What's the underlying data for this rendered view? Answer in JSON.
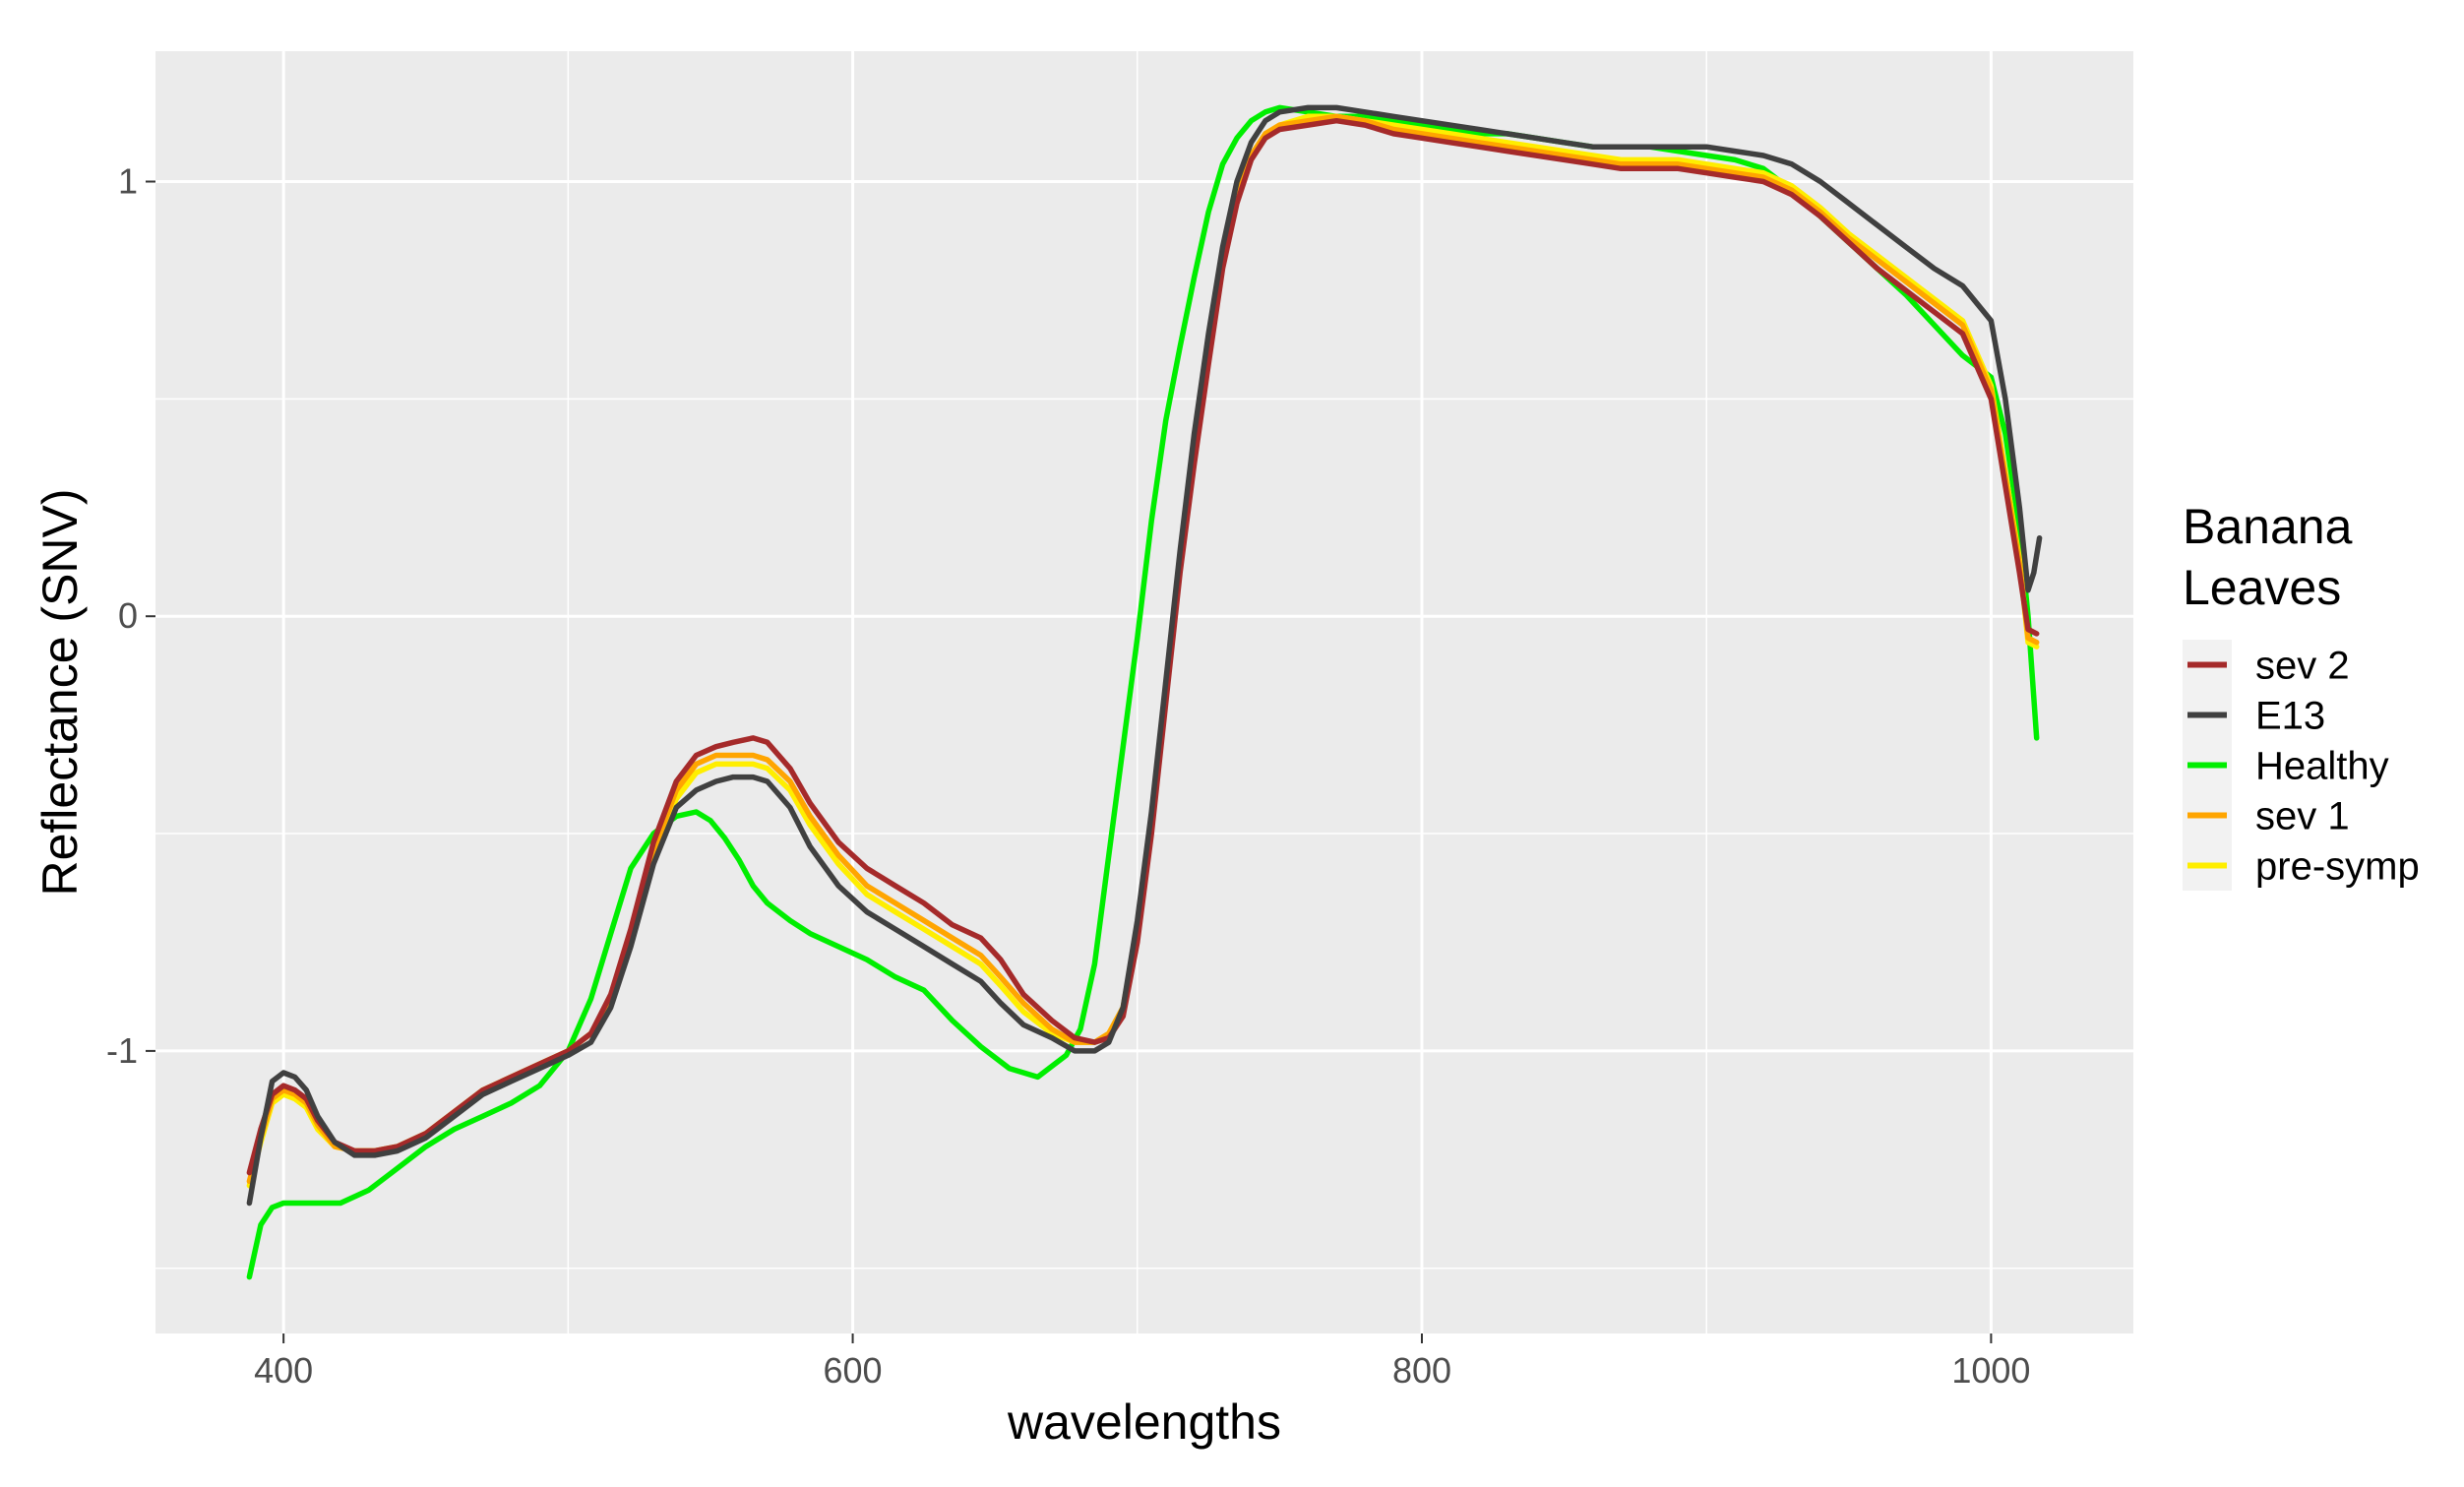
{
  "chart_data": {
    "type": "line",
    "title": "",
    "xlabel": "wavelengths",
    "ylabel": "Reflectance (SNV)",
    "xlim": [
      355,
      1050
    ],
    "ylim": [
      -1.65,
      1.3
    ],
    "x_ticks": [
      400,
      600,
      800,
      1000
    ],
    "x_tick_labels": [
      "400",
      "600",
      "800",
      "1000"
    ],
    "y_ticks": [
      -1,
      0,
      1
    ],
    "y_tick_labels": [
      "-1",
      "0",
      "1"
    ],
    "grid": true,
    "legend": {
      "title_lines": [
        "Banana",
        "Leaves"
      ],
      "placement": "right"
    },
    "series": [
      {
        "name": "sev 2",
        "color": "#a52a2a",
        "x": [
          388,
          392,
          396,
          400,
          404,
          408,
          412,
          418,
          425,
          432,
          440,
          450,
          460,
          470,
          480,
          490,
          500,
          508,
          515,
          522,
          530,
          538,
          545,
          552,
          558,
          565,
          570,
          578,
          585,
          595,
          605,
          615,
          625,
          635,
          645,
          652,
          660,
          670,
          678,
          685,
          690,
          695,
          700,
          705,
          710,
          715,
          720,
          725,
          730,
          735,
          740,
          745,
          750,
          760,
          770,
          780,
          790,
          800,
          810,
          820,
          830,
          840,
          850,
          860,
          870,
          880,
          890,
          900,
          910,
          920,
          930,
          940,
          950,
          960,
          970,
          980,
          990,
          1000,
          1005,
          1010,
          1013,
          1016
        ],
        "y": [
          -1.28,
          -1.18,
          -1.1,
          -1.08,
          -1.09,
          -1.11,
          -1.16,
          -1.21,
          -1.23,
          -1.23,
          -1.22,
          -1.19,
          -1.14,
          -1.09,
          -1.06,
          -1.03,
          -1.0,
          -0.96,
          -0.87,
          -0.72,
          -0.52,
          -0.38,
          -0.32,
          -0.3,
          -0.29,
          -0.28,
          -0.29,
          -0.35,
          -0.43,
          -0.52,
          -0.58,
          -0.62,
          -0.66,
          -0.71,
          -0.74,
          -0.79,
          -0.87,
          -0.93,
          -0.97,
          -0.98,
          -0.97,
          -0.92,
          -0.75,
          -0.5,
          -0.2,
          0.1,
          0.35,
          0.58,
          0.8,
          0.95,
          1.05,
          1.1,
          1.12,
          1.13,
          1.14,
          1.13,
          1.11,
          1.1,
          1.09,
          1.08,
          1.07,
          1.06,
          1.05,
          1.04,
          1.03,
          1.03,
          1.03,
          1.02,
          1.01,
          1.0,
          0.97,
          0.92,
          0.86,
          0.8,
          0.75,
          0.7,
          0.65,
          0.5,
          0.3,
          0.1,
          -0.03,
          -0.04
        ]
      },
      {
        "name": "E13",
        "color": "#404040",
        "x": [
          388,
          392,
          396,
          400,
          404,
          408,
          412,
          418,
          425,
          432,
          440,
          450,
          460,
          470,
          480,
          490,
          500,
          508,
          515,
          522,
          530,
          538,
          545,
          552,
          558,
          565,
          570,
          578,
          585,
          595,
          605,
          615,
          625,
          635,
          645,
          652,
          660,
          670,
          678,
          685,
          690,
          695,
          700,
          705,
          710,
          715,
          720,
          725,
          730,
          735,
          740,
          745,
          750,
          760,
          770,
          780,
          790,
          800,
          810,
          820,
          830,
          840,
          850,
          860,
          870,
          880,
          890,
          900,
          910,
          920,
          930,
          940,
          950,
          960,
          970,
          980,
          990,
          1000,
          1005,
          1010,
          1013,
          1015,
          1017
        ],
        "y": [
          -1.35,
          -1.2,
          -1.07,
          -1.05,
          -1.06,
          -1.09,
          -1.15,
          -1.21,
          -1.24,
          -1.24,
          -1.23,
          -1.2,
          -1.15,
          -1.1,
          -1.07,
          -1.04,
          -1.01,
          -0.98,
          -0.9,
          -0.76,
          -0.57,
          -0.44,
          -0.4,
          -0.38,
          -0.37,
          -0.37,
          -0.38,
          -0.44,
          -0.53,
          -0.62,
          -0.68,
          -0.72,
          -0.76,
          -0.8,
          -0.84,
          -0.89,
          -0.94,
          -0.97,
          -1.0,
          -1.0,
          -0.98,
          -0.9,
          -0.7,
          -0.45,
          -0.15,
          0.15,
          0.42,
          0.65,
          0.85,
          1.0,
          1.09,
          1.14,
          1.16,
          1.17,
          1.17,
          1.16,
          1.15,
          1.14,
          1.13,
          1.12,
          1.11,
          1.1,
          1.09,
          1.08,
          1.08,
          1.08,
          1.08,
          1.08,
          1.07,
          1.06,
          1.04,
          1.0,
          0.95,
          0.9,
          0.85,
          0.8,
          0.76,
          0.68,
          0.5,
          0.25,
          0.06,
          0.1,
          0.18
        ]
      },
      {
        "name": "Healthy",
        "color": "#00ee00",
        "x": [
          388,
          392,
          396,
          400,
          410,
          420,
          430,
          440,
          450,
          460,
          470,
          480,
          490,
          500,
          508,
          515,
          522,
          530,
          538,
          545,
          550,
          555,
          560,
          565,
          570,
          578,
          585,
          595,
          605,
          615,
          625,
          635,
          645,
          655,
          665,
          675,
          680,
          685,
          690,
          695,
          700,
          705,
          710,
          715,
          720,
          725,
          730,
          735,
          740,
          745,
          750,
          760,
          770,
          780,
          790,
          800,
          810,
          820,
          830,
          840,
          850,
          860,
          870,
          880,
          890,
          900,
          910,
          920,
          930,
          940,
          950,
          960,
          970,
          980,
          990,
          1000,
          1005,
          1010,
          1013,
          1016
        ],
        "y": [
          -1.52,
          -1.4,
          -1.36,
          -1.35,
          -1.35,
          -1.35,
          -1.32,
          -1.27,
          -1.22,
          -1.18,
          -1.15,
          -1.12,
          -1.08,
          -1.0,
          -0.88,
          -0.73,
          -0.58,
          -0.5,
          -0.46,
          -0.45,
          -0.47,
          -0.51,
          -0.56,
          -0.62,
          -0.66,
          -0.7,
          -0.73,
          -0.76,
          -0.79,
          -0.83,
          -0.86,
          -0.93,
          -0.99,
          -1.04,
          -1.06,
          -1.01,
          -0.95,
          -0.8,
          -0.55,
          -0.3,
          -0.05,
          0.22,
          0.45,
          0.62,
          0.78,
          0.93,
          1.04,
          1.1,
          1.14,
          1.16,
          1.17,
          1.16,
          1.15,
          1.15,
          1.14,
          1.13,
          1.12,
          1.11,
          1.11,
          1.1,
          1.09,
          1.08,
          1.08,
          1.08,
          1.07,
          1.06,
          1.05,
          1.03,
          0.98,
          0.92,
          0.86,
          0.8,
          0.74,
          0.67,
          0.6,
          0.55,
          0.42,
          0.2,
          0.0,
          -0.28
        ]
      },
      {
        "name": "sev 1",
        "color": "#ffa500",
        "x": [
          388,
          392,
          396,
          400,
          404,
          408,
          412,
          418,
          425,
          432,
          440,
          450,
          460,
          470,
          480,
          490,
          500,
          508,
          515,
          522,
          530,
          538,
          545,
          552,
          558,
          565,
          570,
          578,
          585,
          595,
          605,
          615,
          625,
          635,
          645,
          652,
          660,
          670,
          678,
          685,
          690,
          695,
          700,
          705,
          710,
          715,
          720,
          725,
          730,
          735,
          740,
          745,
          750,
          760,
          770,
          780,
          790,
          800,
          810,
          820,
          830,
          840,
          850,
          860,
          870,
          880,
          890,
          900,
          910,
          920,
          930,
          940,
          950,
          960,
          970,
          980,
          990,
          1000,
          1005,
          1010,
          1013,
          1016
        ],
        "y": [
          -1.3,
          -1.2,
          -1.11,
          -1.09,
          -1.1,
          -1.12,
          -1.17,
          -1.22,
          -1.23,
          -1.23,
          -1.22,
          -1.19,
          -1.14,
          -1.09,
          -1.06,
          -1.03,
          -1.0,
          -0.96,
          -0.88,
          -0.73,
          -0.54,
          -0.4,
          -0.34,
          -0.32,
          -0.32,
          -0.32,
          -0.33,
          -0.38,
          -0.46,
          -0.55,
          -0.62,
          -0.66,
          -0.7,
          -0.74,
          -0.78,
          -0.83,
          -0.89,
          -0.95,
          -0.98,
          -0.98,
          -0.96,
          -0.9,
          -0.72,
          -0.47,
          -0.18,
          0.12,
          0.38,
          0.6,
          0.82,
          0.97,
          1.06,
          1.11,
          1.13,
          1.14,
          1.15,
          1.14,
          1.12,
          1.11,
          1.1,
          1.09,
          1.08,
          1.07,
          1.06,
          1.05,
          1.04,
          1.04,
          1.04,
          1.03,
          1.02,
          1.01,
          0.98,
          0.93,
          0.87,
          0.82,
          0.77,
          0.72,
          0.67,
          0.52,
          0.32,
          0.12,
          -0.05,
          -0.06
        ]
      },
      {
        "name": "pre-symp",
        "color": "#ffee00",
        "x": [
          388,
          392,
          396,
          400,
          404,
          408,
          412,
          418,
          425,
          432,
          440,
          450,
          460,
          470,
          480,
          490,
          500,
          508,
          515,
          522,
          530,
          538,
          545,
          552,
          558,
          565,
          570,
          578,
          585,
          595,
          605,
          615,
          625,
          635,
          645,
          652,
          660,
          670,
          678,
          685,
          690,
          695,
          700,
          705,
          710,
          715,
          720,
          725,
          730,
          735,
          740,
          745,
          750,
          760,
          770,
          780,
          790,
          800,
          810,
          820,
          830,
          840,
          850,
          860,
          870,
          880,
          890,
          900,
          910,
          920,
          930,
          940,
          950,
          960,
          970,
          980,
          990,
          1000,
          1005,
          1010,
          1013,
          1016
        ],
        "y": [
          -1.31,
          -1.21,
          -1.12,
          -1.1,
          -1.11,
          -1.13,
          -1.18,
          -1.22,
          -1.23,
          -1.23,
          -1.22,
          -1.19,
          -1.14,
          -1.09,
          -1.06,
          -1.03,
          -1.0,
          -0.96,
          -0.88,
          -0.74,
          -0.55,
          -0.42,
          -0.36,
          -0.34,
          -0.34,
          -0.34,
          -0.35,
          -0.4,
          -0.48,
          -0.57,
          -0.64,
          -0.68,
          -0.72,
          -0.76,
          -0.8,
          -0.85,
          -0.91,
          -0.96,
          -0.98,
          -0.98,
          -0.96,
          -0.9,
          -0.72,
          -0.47,
          -0.17,
          0.13,
          0.39,
          0.61,
          0.82,
          0.97,
          1.06,
          1.11,
          1.13,
          1.15,
          1.15,
          1.14,
          1.13,
          1.12,
          1.11,
          1.1,
          1.09,
          1.08,
          1.07,
          1.06,
          1.05,
          1.05,
          1.05,
          1.04,
          1.03,
          1.02,
          0.99,
          0.94,
          0.88,
          0.83,
          0.78,
          0.73,
          0.68,
          0.53,
          0.33,
          0.13,
          -0.06,
          -0.07
        ]
      }
    ]
  }
}
